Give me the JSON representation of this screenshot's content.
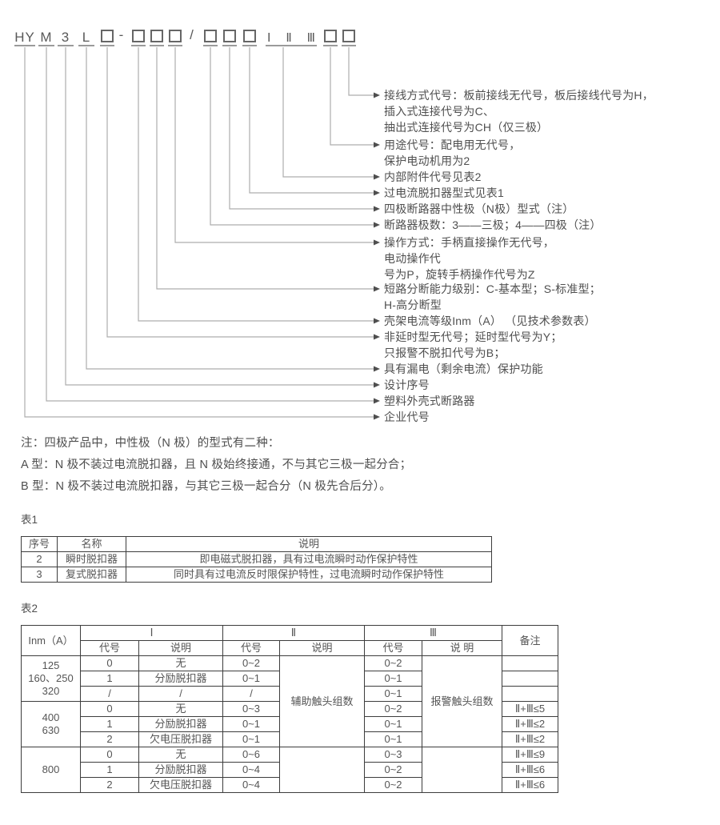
{
  "diagram": {
    "symbols": [
      {
        "id": "hy",
        "type": "letter",
        "label": "HY"
      },
      {
        "id": "m",
        "type": "letter",
        "label": "M"
      },
      {
        "id": "3",
        "type": "letter",
        "label": "3"
      },
      {
        "id": "l",
        "type": "letter",
        "label": "L"
      },
      {
        "id": "box1",
        "type": "box",
        "label": ""
      },
      {
        "id": "dash",
        "type": "sep",
        "label": "-"
      },
      {
        "id": "box2",
        "type": "box",
        "label": ""
      },
      {
        "id": "box3",
        "type": "box",
        "label": ""
      },
      {
        "id": "box4",
        "type": "box",
        "label": ""
      },
      {
        "id": "slash",
        "type": "sep",
        "label": "/"
      },
      {
        "id": "box5",
        "type": "box",
        "label": ""
      },
      {
        "id": "box6",
        "type": "box",
        "label": ""
      },
      {
        "id": "box7",
        "type": "box",
        "label": ""
      },
      {
        "id": "roman",
        "type": "roman",
        "label": "Ⅰ Ⅱ Ⅲ",
        "parts": [
          "Ⅰ",
          "Ⅱ",
          "Ⅲ"
        ]
      },
      {
        "id": "box8",
        "type": "box",
        "label": ""
      },
      {
        "id": "box9",
        "type": "box",
        "label": ""
      }
    ],
    "annotations": [
      {
        "text": "接线方式代号：板前接线无代号，板后接线代号为H，\n插入式连接代号为C、\n抽出式连接代号为CH（仅三极）"
      },
      {
        "text": "用途代号：配电用无代号，\n保护电动机用为2"
      },
      {
        "text": "内部附件代号见表2"
      },
      {
        "text": "过电流脱扣器型式见表1"
      },
      {
        "text": "四极断路器中性极（N极）型式（注）"
      },
      {
        "text": "断路器极数：3——三极；4——四极（注）"
      },
      {
        "text": "操作方式：手柄直接操作无代号，\n电动操作代\n号为P，旋转手柄操作代号为Z"
      },
      {
        "text": "短路分断能力级别：C-基本型；S-标准型；\nH-高分断型"
      },
      {
        "text": "壳架电流等级Inm（A） （见技术参数表）"
      },
      {
        "text": "非延时型无代号；延时型代号为Y；\n只报警不脱扣代号为B；"
      },
      {
        "text": "具有漏电（剩余电流）保护功能"
      },
      {
        "text": "设计序号"
      },
      {
        "text": "塑料外壳式断路器"
      },
      {
        "text": "企业代号"
      }
    ]
  },
  "notes": {
    "line1": "注：四极产品中，中性极（N 极）的型式有二种：",
    "line2": "A 型：N 极不装过电流脱扣器，且 N 极始终接通，不与其它三极一起分合；",
    "line3": "B 型：N 极不装过电流脱扣器，与其它三极一起合分（N 极先合后分）。"
  },
  "table1": {
    "label": "表1",
    "header": [
      "序号",
      "名称",
      "说明"
    ],
    "rows": [
      [
        "2",
        "瞬时脱扣器",
        "即电磁式脱扣器，具有过电流瞬时动作保护特性"
      ],
      [
        "3",
        "复式脱扣器",
        "同时具有过电流反时限保护特性，过电流瞬时动作保护特性"
      ]
    ]
  },
  "table2": {
    "label": "表2",
    "header_row1": [
      {
        "t": "Inm（A）",
        "rs": 2
      },
      {
        "t": "Ⅰ",
        "cs": 2
      },
      {
        "t": "Ⅱ",
        "cs": 2
      },
      {
        "t": "Ⅲ",
        "cs": 2
      },
      {
        "t": "备注",
        "rs": 2
      }
    ],
    "header_row2": [
      {
        "t": "代号"
      },
      {
        "t": "说明"
      },
      {
        "t": "代号"
      },
      {
        "t": "说明"
      },
      {
        "t": "代号"
      },
      {
        "t": "说 明"
      }
    ],
    "rows": [
      [
        {
          "t": "125\n160、250\n320",
          "rs": 3
        },
        {
          "t": "0"
        },
        {
          "t": "无"
        },
        {
          "t": "0~2"
        },
        {
          "t": "辅助触头组数",
          "rs": 6
        },
        {
          "t": "0~2"
        },
        {
          "t": "报警触头组数",
          "rs": 6
        },
        {
          "t": ""
        }
      ],
      [
        {
          "t": "1"
        },
        {
          "t": "分励脱扣器"
        },
        {
          "t": "0~1"
        },
        {
          "t": "0~1"
        },
        {
          "t": ""
        }
      ],
      [
        {
          "t": "/"
        },
        {
          "t": "/"
        },
        {
          "t": "/"
        },
        {
          "t": "0~1"
        },
        {
          "t": ""
        }
      ],
      [
        {
          "t": "400\n630",
          "rs": 3
        },
        {
          "t": "0"
        },
        {
          "t": "无"
        },
        {
          "t": "0~3"
        },
        {
          "t": "0~2"
        },
        {
          "t": "Ⅱ+Ⅲ≤5"
        }
      ],
      [
        {
          "t": "1"
        },
        {
          "t": "分励脱扣器"
        },
        {
          "t": "0~1"
        },
        {
          "t": "0~1"
        },
        {
          "t": "Ⅱ+Ⅲ≤2"
        }
      ],
      [
        {
          "t": "2"
        },
        {
          "t": "欠电压脱扣器"
        },
        {
          "t": "0~1"
        },
        {
          "t": "0~1"
        },
        {
          "t": "Ⅱ+Ⅲ≤2"
        }
      ],
      [
        {
          "t": "800",
          "rs": 3
        },
        {
          "t": "0"
        },
        {
          "t": "无"
        },
        {
          "t": "0~6"
        },
        {
          "t": "",
          "rs": 3
        },
        {
          "t": "0~3"
        },
        {
          "t": "",
          "rs": 3
        },
        {
          "t": "Ⅱ+Ⅲ≤9"
        }
      ],
      [
        {
          "t": "1"
        },
        {
          "t": "分励脱扣器"
        },
        {
          "t": "0~4"
        },
        {
          "t": "0~2"
        },
        {
          "t": "Ⅱ+Ⅲ≤6"
        }
      ],
      [
        {
          "t": "2"
        },
        {
          "t": "欠电压脱扣器"
        },
        {
          "t": "0~4"
        },
        {
          "t": "0~2"
        },
        {
          "t": "Ⅱ+Ⅲ≤6"
        }
      ]
    ]
  },
  "colors": {
    "text": "#4f4f4f",
    "leader_line": "#adadad",
    "arrow": "#4f4f4f",
    "table_border": "#3d3d3d",
    "underline": "#9a9a9a"
  }
}
